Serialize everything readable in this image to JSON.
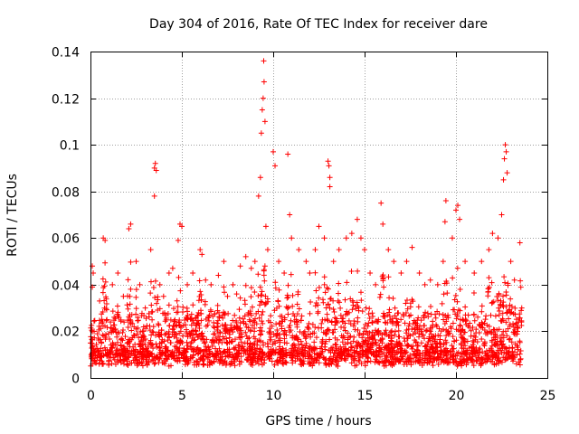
{
  "chart_data": {
    "type": "scatter",
    "title": "Day 304 of 2016, Rate Of TEC Index for receiver dare",
    "xlabel": "GPS time / hours",
    "ylabel": "ROTI / TECUs",
    "xlim": [
      0,
      25
    ],
    "ylim": [
      0,
      0.14
    ],
    "xticks": [
      0,
      5,
      10,
      15,
      20,
      25
    ],
    "yticks": [
      0,
      0.02,
      0.04,
      0.06,
      0.08,
      0.1,
      0.12,
      0.14
    ],
    "xtick_labels": [
      "0",
      "5",
      "10",
      "15",
      "20",
      "25"
    ],
    "ytick_labels": [
      "0",
      "0.02",
      "0.04",
      "0.06",
      "0.08",
      "0.1",
      "0.12",
      "0.14"
    ],
    "grid": true,
    "marker": "+",
    "color": "#ff0000",
    "series": [
      {
        "name": "ROTI",
        "points": [
          [
            0.0,
            0.015
          ],
          [
            0.1,
            0.048
          ],
          [
            0.15,
            0.045
          ],
          [
            0.2,
            0.02
          ],
          [
            0.3,
            0.012
          ],
          [
            0.5,
            0.033
          ],
          [
            0.7,
            0.06
          ],
          [
            0.8,
            0.059
          ],
          [
            0.9,
            0.025
          ],
          [
            1.2,
            0.04
          ],
          [
            1.5,
            0.045
          ],
          [
            1.8,
            0.035
          ],
          [
            2.1,
            0.064
          ],
          [
            2.2,
            0.066
          ],
          [
            2.5,
            0.05
          ],
          [
            2.7,
            0.04
          ],
          [
            3.0,
            0.03
          ],
          [
            3.3,
            0.055
          ],
          [
            3.5,
            0.09
          ],
          [
            3.55,
            0.092
          ],
          [
            3.6,
            0.089
          ],
          [
            3.5,
            0.078
          ],
          [
            3.8,
            0.04
          ],
          [
            4.0,
            0.035
          ],
          [
            4.3,
            0.045
          ],
          [
            4.5,
            0.047
          ],
          [
            4.8,
            0.059
          ],
          [
            4.9,
            0.066
          ],
          [
            5.0,
            0.065
          ],
          [
            5.3,
            0.04
          ],
          [
            5.6,
            0.045
          ],
          [
            6.0,
            0.055
          ],
          [
            6.1,
            0.053
          ],
          [
            6.3,
            0.042
          ],
          [
            6.6,
            0.04
          ],
          [
            7.0,
            0.044
          ],
          [
            7.3,
            0.05
          ],
          [
            7.5,
            0.035
          ],
          [
            7.8,
            0.04
          ],
          [
            8.0,
            0.036
          ],
          [
            8.2,
            0.048
          ],
          [
            8.5,
            0.052
          ],
          [
            8.8,
            0.047
          ],
          [
            9.0,
            0.05
          ],
          [
            9.2,
            0.078
          ],
          [
            9.3,
            0.086
          ],
          [
            9.35,
            0.105
          ],
          [
            9.4,
            0.115
          ],
          [
            9.45,
            0.12
          ],
          [
            9.5,
            0.127
          ],
          [
            9.48,
            0.136
          ],
          [
            9.55,
            0.11
          ],
          [
            9.6,
            0.065
          ],
          [
            9.7,
            0.055
          ],
          [
            10.0,
            0.097
          ],
          [
            10.1,
            0.091
          ],
          [
            10.3,
            0.05
          ],
          [
            10.6,
            0.045
          ],
          [
            10.8,
            0.096
          ],
          [
            10.9,
            0.07
          ],
          [
            11.0,
            0.06
          ],
          [
            11.4,
            0.055
          ],
          [
            11.8,
            0.05
          ],
          [
            12.0,
            0.045
          ],
          [
            12.3,
            0.055
          ],
          [
            12.5,
            0.065
          ],
          [
            12.8,
            0.06
          ],
          [
            13.0,
            0.093
          ],
          [
            13.05,
            0.091
          ],
          [
            13.1,
            0.086
          ],
          [
            13.1,
            0.082
          ],
          [
            13.3,
            0.05
          ],
          [
            13.6,
            0.055
          ],
          [
            14.0,
            0.06
          ],
          [
            14.3,
            0.062
          ],
          [
            14.6,
            0.068
          ],
          [
            14.8,
            0.06
          ],
          [
            15.0,
            0.055
          ],
          [
            15.3,
            0.045
          ],
          [
            15.6,
            0.04
          ],
          [
            15.9,
            0.075
          ],
          [
            16.0,
            0.066
          ],
          [
            16.3,
            0.055
          ],
          [
            16.6,
            0.05
          ],
          [
            17.0,
            0.045
          ],
          [
            17.3,
            0.05
          ],
          [
            17.6,
            0.056
          ],
          [
            18.0,
            0.045
          ],
          [
            18.3,
            0.04
          ],
          [
            18.6,
            0.042
          ],
          [
            19.0,
            0.04
          ],
          [
            19.3,
            0.05
          ],
          [
            19.4,
            0.067
          ],
          [
            19.45,
            0.076
          ],
          [
            19.8,
            0.06
          ],
          [
            20.0,
            0.072
          ],
          [
            20.1,
            0.074
          ],
          [
            20.2,
            0.068
          ],
          [
            20.5,
            0.05
          ],
          [
            21.0,
            0.045
          ],
          [
            21.4,
            0.05
          ],
          [
            21.8,
            0.055
          ],
          [
            22.0,
            0.062
          ],
          [
            22.3,
            0.06
          ],
          [
            22.5,
            0.07
          ],
          [
            22.6,
            0.085
          ],
          [
            22.65,
            0.094
          ],
          [
            22.7,
            0.1
          ],
          [
            22.75,
            0.097
          ],
          [
            22.8,
            0.088
          ],
          [
            23.0,
            0.05
          ],
          [
            23.2,
            0.042
          ],
          [
            23.5,
            0.058
          ],
          [
            23.6,
            0.03
          ]
        ],
        "dense_band": {
          "x_range": [
            0,
            23.6
          ],
          "y_typical_range": [
            0.004,
            0.035
          ],
          "note": "Thousands of overlapping '+' markers fill this band across the full day"
        }
      }
    ]
  }
}
